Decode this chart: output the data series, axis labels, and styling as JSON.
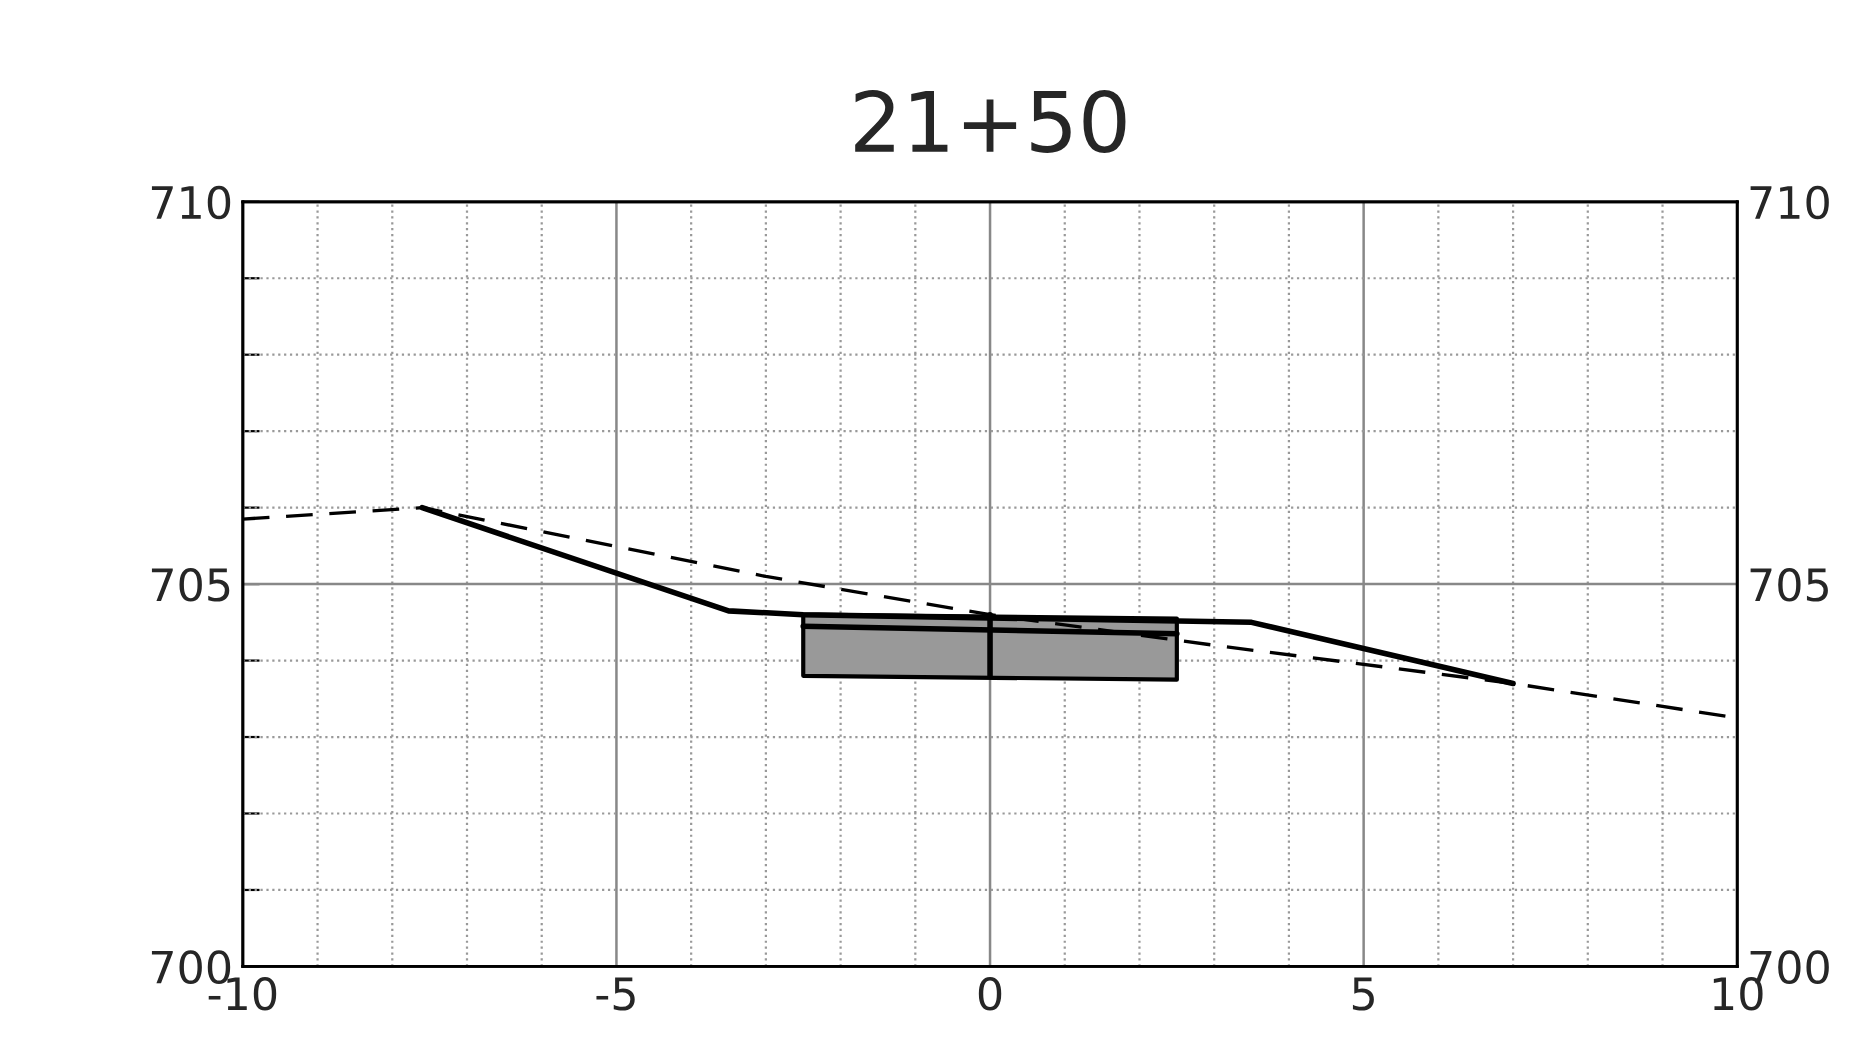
{
  "chart_data": {
    "type": "line",
    "title": "21+50",
    "xlim": [
      -10,
      10
    ],
    "xticks": [
      -10,
      {
        "value": -9,
        "label": null
      },
      {
        "value": -8,
        "label": null
      },
      {
        "value": -7,
        "label": null
      },
      {
        "value": -6,
        "label": null
      },
      -5,
      {
        "value": -4,
        "label": null
      },
      {
        "value": -3,
        "label": null
      },
      {
        "value": -2,
        "label": null
      },
      {
        "value": -1,
        "label": null
      },
      0,
      {
        "value": 1,
        "label": null
      },
      {
        "value": 2,
        "label": null
      },
      {
        "value": 3,
        "label": null
      },
      {
        "value": 4,
        "label": null
      },
      5,
      {
        "value": 6,
        "label": null
      },
      {
        "value": 7,
        "label": null
      },
      {
        "value": 8,
        "label": null
      },
      {
        "value": 9,
        "label": null
      },
      10
    ],
    "ylim": [
      700,
      710
    ],
    "yticks": [
      700,
      {
        "value": 701,
        "label": null
      },
      {
        "value": 702,
        "label": null
      },
      {
        "value": 703,
        "label": null
      },
      {
        "value": 704,
        "label": null
      },
      705,
      {
        "value": 706,
        "label": null
      },
      {
        "value": 707,
        "label": null
      },
      {
        "value": 708,
        "label": null
      },
      {
        "value": 709,
        "label": null
      },
      710
    ],
    "y2lim": [
      700,
      710
    ],
    "y2ticks": [
      700,
      705,
      710
    ],
    "grid": true,
    "series": [
      {
        "type": "line",
        "color": "#000000",
        "line_style": "solid",
        "x": [
          -2.5,
          2.5
        ],
        "values": [
          704.45,
          704.35
        ],
        "lower": [
          703.8,
          703.75
        ],
        "upper": [
          704.6,
          704.55
        ]
      },
      {
        "type": "line",
        "color": "#000000",
        "line_style": "solid",
        "x": [
          0,
          0
        ],
        "values": [
          703.8,
          704.6
        ]
      },
      {
        "type": "line",
        "color": "#000000",
        "line_style": "dashed",
        "x": [
          -10,
          -7.6,
          -3,
          0,
          3,
          7,
          10
        ],
        "values": [
          705.85,
          706.0,
          705.1,
          704.6,
          704.2,
          703.7,
          703.25
        ]
      },
      {
        "type": "line",
        "color": "#000000",
        "line_style": "solid",
        "x": [
          -7.6,
          -3.5,
          -2.5,
          3.5,
          7
        ],
        "values": [
          706.0,
          704.65,
          704.6,
          704.5,
          703.7
        ]
      }
    ]
  }
}
